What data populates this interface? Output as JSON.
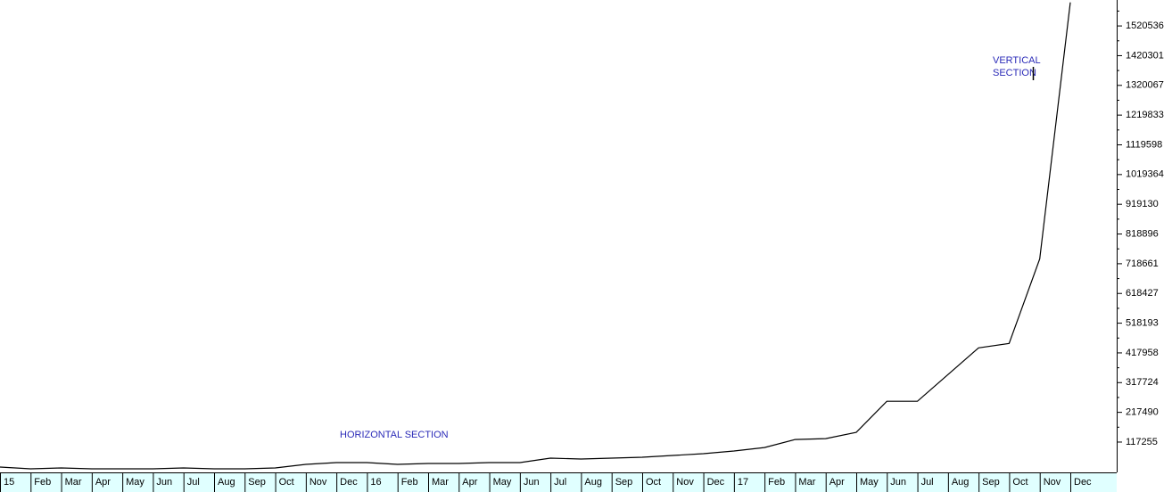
{
  "chart_data": {
    "type": "line",
    "annotations": [
      "HORIZONTAL SECTION",
      "VERTICAL",
      "SECTION"
    ],
    "categories": [
      "15",
      "Feb",
      "Mar",
      "Apr",
      "May",
      "Jun",
      "Jul",
      "Aug",
      "Sep",
      "Oct",
      "Nov",
      "Dec",
      "16",
      "Feb",
      "Mar",
      "Apr",
      "May",
      "Jun",
      "Jul",
      "Aug",
      "Sep",
      "Oct",
      "Nov",
      "Dec",
      "17",
      "Feb",
      "Mar",
      "Apr",
      "May",
      "Jun",
      "Jul",
      "Aug",
      "Sep",
      "Oct",
      "Nov",
      "Dec"
    ],
    "series": [
      {
        "color": "#000000",
        "values": [
          33000,
          27000,
          30000,
          27000,
          27000,
          27000,
          30000,
          27000,
          27000,
          30000,
          42000,
          48000,
          48000,
          42000,
          45000,
          45000,
          48000,
          48000,
          63000,
          60000,
          63000,
          66000,
          72000,
          78000,
          87000,
          99000,
          126000,
          129000,
          150000,
          255000,
          255000,
          345000,
          435000,
          450000,
          735000,
          1600000
        ]
      }
    ],
    "ylim": [
      15000,
      1608000
    ],
    "yticks": [
      117255,
      217490,
      317724,
      417958,
      518193,
      618427,
      718661,
      818896,
      919130,
      1019364,
      1119598,
      1219833,
      1320067,
      1420301,
      1520536
    ],
    "axis_color": "#e0ffff",
    "annotation_color": "#2b2bb8"
  }
}
